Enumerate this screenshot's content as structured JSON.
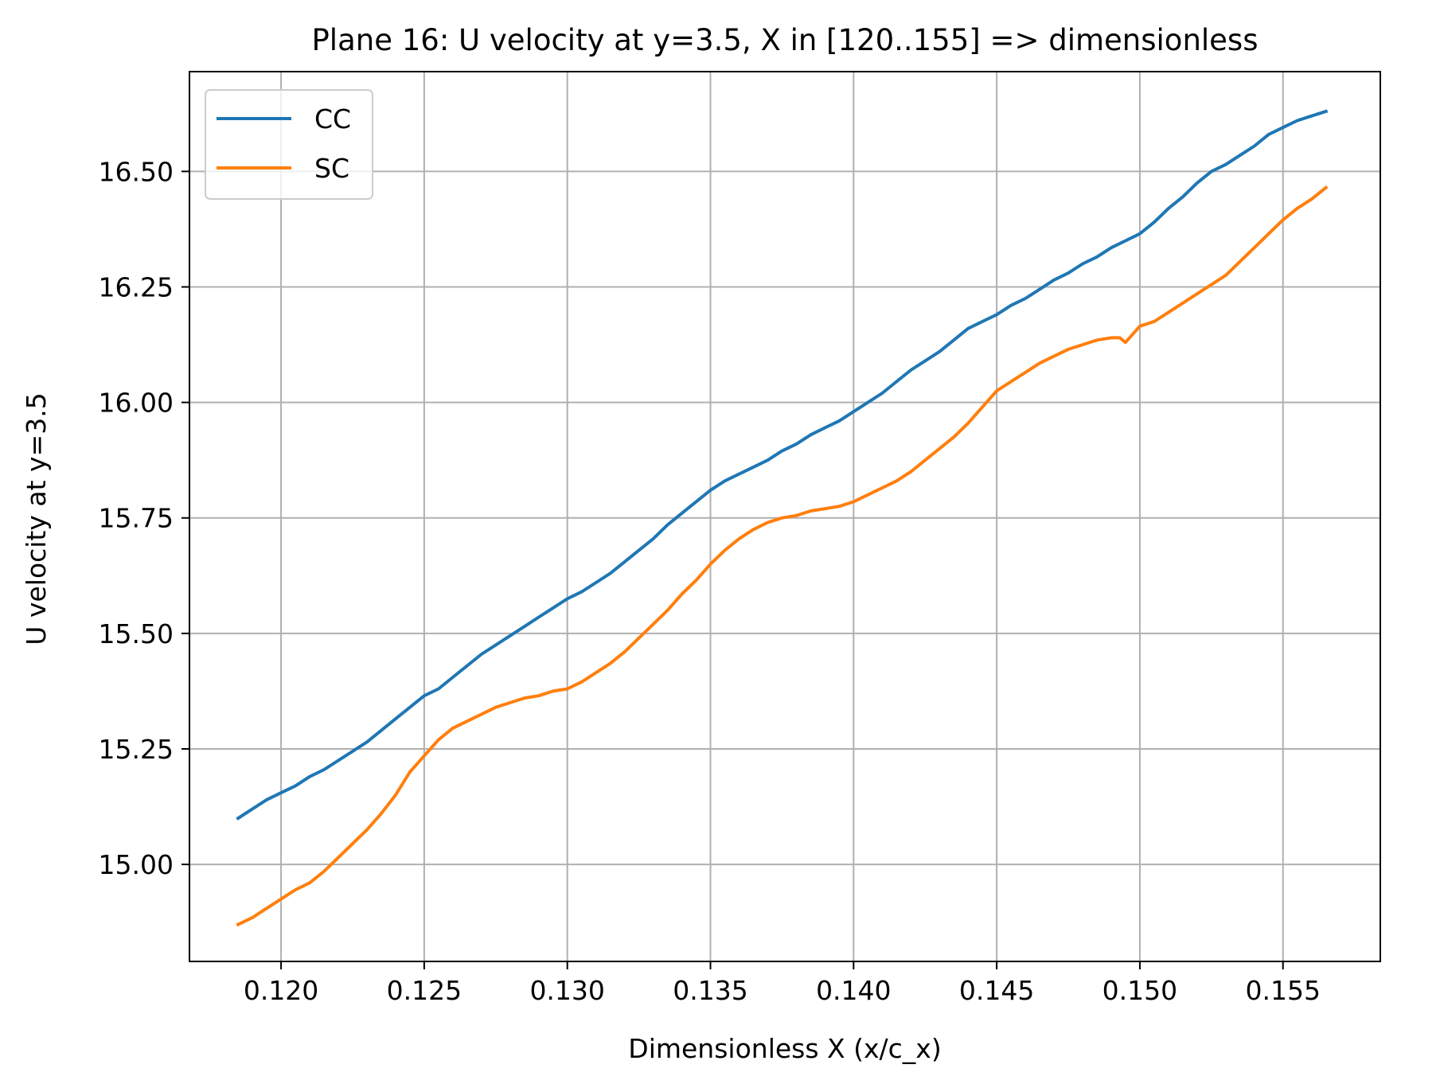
{
  "chart_data": {
    "type": "line",
    "title": "Plane 16: U velocity at y=3.5, X in [120..155] => dimensionless",
    "xlabel": "Dimensionless X (x/c_x)",
    "ylabel": "U velocity at y=3.5",
    "xlim": [
      0.1168,
      0.1584
    ],
    "ylim": [
      14.79,
      16.716
    ],
    "xticks": [
      0.12,
      0.125,
      0.13,
      0.135,
      0.14,
      0.145,
      0.15,
      0.155
    ],
    "yticks": [
      15.0,
      15.25,
      15.5,
      15.75,
      16.0,
      16.25,
      16.5
    ],
    "xtick_labels": [
      "0.120",
      "0.125",
      "0.130",
      "0.135",
      "0.140",
      "0.145",
      "0.150",
      "0.155"
    ],
    "ytick_labels": [
      "15.00",
      "15.25",
      "15.50",
      "15.75",
      "16.00",
      "16.25",
      "16.50"
    ],
    "grid": true,
    "legend_position": "top-left",
    "series": [
      {
        "name": "CC",
        "color": "#1f77b4",
        "x": [
          0.1185,
          0.119,
          0.1195,
          0.12,
          0.1205,
          0.121,
          0.1215,
          0.122,
          0.1225,
          0.123,
          0.1235,
          0.124,
          0.1245,
          0.125,
          0.1255,
          0.126,
          0.1265,
          0.127,
          0.1275,
          0.128,
          0.1285,
          0.129,
          0.1295,
          0.13,
          0.1305,
          0.131,
          0.1315,
          0.132,
          0.1325,
          0.133,
          0.1335,
          0.134,
          0.1345,
          0.135,
          0.1355,
          0.136,
          0.1365,
          0.137,
          0.1375,
          0.138,
          0.1385,
          0.139,
          0.1395,
          0.14,
          0.1405,
          0.141,
          0.1415,
          0.142,
          0.1425,
          0.143,
          0.1435,
          0.144,
          0.1445,
          0.145,
          0.1455,
          0.146,
          0.1465,
          0.147,
          0.1475,
          0.148,
          0.1485,
          0.149,
          0.1495,
          0.15,
          0.1505,
          0.151,
          0.1515,
          0.152,
          0.1525,
          0.153,
          0.1535,
          0.154,
          0.1545,
          0.155,
          0.1555,
          0.156,
          0.1565
        ],
        "y": [
          15.1,
          15.12,
          15.14,
          15.155,
          15.17,
          15.19,
          15.205,
          15.225,
          15.245,
          15.265,
          15.29,
          15.315,
          15.34,
          15.365,
          15.38,
          15.405,
          15.43,
          15.455,
          15.475,
          15.495,
          15.515,
          15.535,
          15.555,
          15.575,
          15.59,
          15.61,
          15.63,
          15.655,
          15.68,
          15.705,
          15.735,
          15.76,
          15.785,
          15.81,
          15.83,
          15.845,
          15.86,
          15.875,
          15.895,
          15.91,
          15.93,
          15.945,
          15.96,
          15.98,
          16.0,
          16.02,
          16.045,
          16.07,
          16.09,
          16.11,
          16.135,
          16.16,
          16.175,
          16.19,
          16.21,
          16.225,
          16.245,
          16.265,
          16.28,
          16.3,
          16.315,
          16.335,
          16.35,
          16.365,
          16.39,
          16.42,
          16.445,
          16.475,
          16.5,
          16.515,
          16.535,
          16.555,
          16.58,
          16.595,
          16.61,
          16.62,
          16.63
        ]
      },
      {
        "name": "SC",
        "color": "#ff7f0e",
        "x": [
          0.1185,
          0.119,
          0.1195,
          0.12,
          0.1205,
          0.121,
          0.1215,
          0.122,
          0.1225,
          0.123,
          0.1235,
          0.124,
          0.1245,
          0.125,
          0.1255,
          0.126,
          0.1265,
          0.127,
          0.1275,
          0.128,
          0.1285,
          0.129,
          0.1295,
          0.13,
          0.1305,
          0.131,
          0.1315,
          0.132,
          0.1325,
          0.133,
          0.1335,
          0.134,
          0.1345,
          0.135,
          0.1355,
          0.136,
          0.1365,
          0.137,
          0.1375,
          0.138,
          0.1385,
          0.139,
          0.1395,
          0.14,
          0.1405,
          0.141,
          0.1415,
          0.142,
          0.1425,
          0.143,
          0.1435,
          0.144,
          0.1445,
          0.145,
          0.1455,
          0.146,
          0.1465,
          0.147,
          0.1475,
          0.148,
          0.1485,
          0.149,
          0.1493,
          0.1495,
          0.15,
          0.1505,
          0.151,
          0.1515,
          0.152,
          0.1525,
          0.153,
          0.1535,
          0.154,
          0.1545,
          0.155,
          0.1555,
          0.156,
          0.1565
        ],
        "y": [
          14.87,
          14.885,
          14.905,
          14.925,
          14.945,
          14.96,
          14.985,
          15.015,
          15.045,
          15.075,
          15.11,
          15.15,
          15.2,
          15.235,
          15.27,
          15.295,
          15.31,
          15.325,
          15.34,
          15.35,
          15.36,
          15.365,
          15.375,
          15.38,
          15.395,
          15.415,
          15.435,
          15.46,
          15.49,
          15.52,
          15.55,
          15.585,
          15.615,
          15.65,
          15.68,
          15.705,
          15.725,
          15.74,
          15.75,
          15.755,
          15.765,
          15.77,
          15.775,
          15.785,
          15.8,
          15.815,
          15.83,
          15.85,
          15.875,
          15.9,
          15.925,
          15.955,
          15.99,
          16.025,
          16.045,
          16.065,
          16.085,
          16.1,
          16.115,
          16.125,
          16.135,
          16.14,
          16.14,
          16.13,
          16.165,
          16.175,
          16.195,
          16.215,
          16.235,
          16.255,
          16.275,
          16.305,
          16.335,
          16.365,
          16.395,
          16.42,
          16.44,
          16.465
        ]
      }
    ]
  }
}
